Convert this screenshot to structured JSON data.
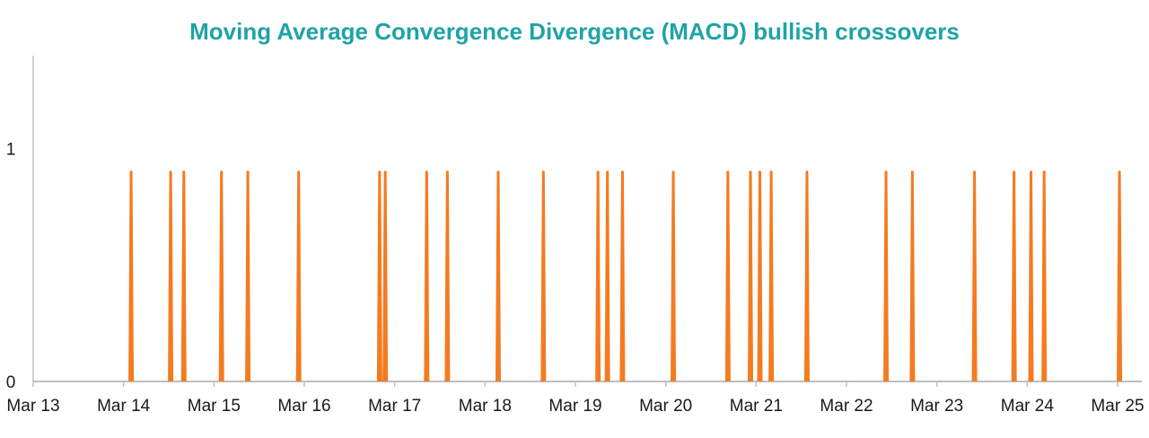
{
  "colors": {
    "title": "#1fa3a6",
    "series": "#f47b20",
    "axis": "#bfbfbf",
    "text": "#1a1a1a"
  },
  "chart_data": {
    "type": "line",
    "title": "Moving Average Convergence Divergence (MACD) bullish crossovers",
    "xlabel": "",
    "ylabel": "",
    "x_range": [
      "2024-03-13",
      "2024-03-25"
    ],
    "ylim": [
      0,
      1.4
    ],
    "x_tick_labels": [
      "Mar 13",
      "Mar 14",
      "Mar 15",
      "Mar 16",
      "Mar 17",
      "Mar 18",
      "Mar 19",
      "Mar 20",
      "Mar 21",
      "Mar 22",
      "Mar 23",
      "Mar 24",
      "Mar 25"
    ],
    "y_tick_labels": [
      "0",
      "1"
    ],
    "grid": false,
    "legend": "none",
    "series": [
      {
        "spike_value": 0.9,
        "crossover_dates": [
          "Mar 14 02:00",
          "Mar 14 12:30",
          "Mar 14 16:00",
          "Mar 15 02:00",
          "Mar 15 09:00",
          "Mar 15 22:30",
          "Mar 16 20:00",
          "Mar 16 21:30",
          "Mar 17 08:30",
          "Mar 17 14:00",
          "Mar 18 03:30",
          "Mar 18 15:30",
          "Mar 19 06:00",
          "Mar 19 08:30",
          "Mar 19 12:30",
          "Mar 20 02:00",
          "Mar 20 16:30",
          "Mar 20 22:30",
          "Mar 21 01:00",
          "Mar 21 04:00",
          "Mar 21 13:30",
          "Mar 22 10:30",
          "Mar 22 17:30",
          "Mar 23 10:00",
          "Mar 23 20:30",
          "Mar 24 01:00",
          "Mar 24 04:30",
          "Mar 25 00:30"
        ]
      }
    ]
  }
}
